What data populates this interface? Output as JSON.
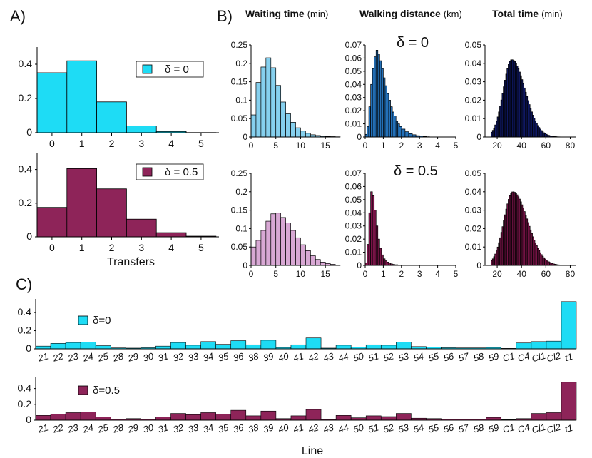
{
  "panels": {
    "a": "A)",
    "b": "B)",
    "c": "C)"
  },
  "colors": {
    "cyan": "#1edcf5",
    "purple": "#8e2459",
    "lightblue": "#86d0ee",
    "blue": "#2370b8",
    "navy": "#101a6a",
    "lilac": "#d8a8d4",
    "darkmagenta": "#7a1448"
  },
  "headings": {
    "waiting": {
      "bold": "Waiting time",
      "unit": "(min)"
    },
    "walking": {
      "bold": "Walking distance",
      "unit": "(km)"
    },
    "total": {
      "bold": "Total time",
      "unit": "(min)"
    }
  },
  "delta_labels": {
    "d0": "δ = 0",
    "d05": "δ = 0.5"
  },
  "chart_data": [
    {
      "id": "transfers_d0",
      "type": "bar",
      "legend": "δ = 0",
      "color": "#1edcf5",
      "categories": [
        "0",
        "1",
        "2",
        "3",
        "4",
        "5"
      ],
      "values": [
        0.35,
        0.42,
        0.18,
        0.04,
        0.007,
        0.001
      ],
      "ylim": [
        0,
        0.5
      ],
      "yticks": [
        0,
        0.2,
        0.4
      ],
      "xlabel": ""
    },
    {
      "id": "transfers_d05",
      "type": "bar",
      "legend": "δ = 0.5",
      "color": "#8e2459",
      "categories": [
        "0",
        "1",
        "2",
        "3",
        "4",
        "5"
      ],
      "values": [
        0.175,
        0.405,
        0.285,
        0.105,
        0.025,
        0.004
      ],
      "ylim": [
        0,
        0.5
      ],
      "yticks": [
        0,
        0.2,
        0.4
      ],
      "xlabel": "Transfers"
    },
    {
      "id": "waiting_d0",
      "type": "bar",
      "color": "#86d0ee",
      "x": [
        0.5,
        1.5,
        2.5,
        3.5,
        4.5,
        5.5,
        6.5,
        7.5,
        8.5,
        9.5,
        10.5,
        11.5,
        12.5,
        13.5,
        14.5,
        15.5,
        16.5,
        17.5
      ],
      "values": [
        0.06,
        0.148,
        0.19,
        0.215,
        0.188,
        0.14,
        0.095,
        0.063,
        0.04,
        0.025,
        0.016,
        0.01,
        0.006,
        0.004,
        0.002,
        0.0015,
        0.001,
        0.0005
      ],
      "xlim": [
        0,
        18
      ],
      "ylim": [
        0,
        0.25
      ],
      "xticks": [
        0,
        5,
        10,
        15
      ],
      "yticks": [
        0,
        0.05,
        0.1,
        0.15,
        0.2,
        0.25
      ]
    },
    {
      "id": "walking_d0",
      "type": "bar",
      "color": "#2370b8",
      "x": [
        0.05,
        0.15,
        0.25,
        0.35,
        0.45,
        0.55,
        0.65,
        0.75,
        0.85,
        0.95,
        1.05,
        1.15,
        1.25,
        1.35,
        1.45,
        1.55,
        1.65,
        1.75,
        1.85,
        1.95,
        2.1,
        2.3,
        2.5,
        2.7,
        2.9,
        3.1,
        3.3,
        3.5
      ],
      "values": [
        0.002,
        0.008,
        0.023,
        0.04,
        0.052,
        0.061,
        0.066,
        0.063,
        0.058,
        0.052,
        0.045,
        0.039,
        0.033,
        0.028,
        0.023,
        0.019,
        0.016,
        0.012,
        0.01,
        0.008,
        0.006,
        0.004,
        0.0025,
        0.0017,
        0.001,
        0.0007,
        0.0004,
        0.0002
      ],
      "xlim": [
        0,
        5
      ],
      "ylim": [
        0,
        0.07
      ],
      "xticks": [
        0,
        1,
        2,
        3,
        4,
        5
      ],
      "yticks": [
        0,
        0.01,
        0.02,
        0.03,
        0.04,
        0.05,
        0.06,
        0.07
      ]
    },
    {
      "id": "total_d0",
      "type": "bar",
      "color": "#101a6a",
      "x_range": [
        15,
        80
      ],
      "peak": 32,
      "peak_value": 0.042,
      "sigma_left": 7,
      "sigma_right": 11,
      "xlim": [
        10,
        85
      ],
      "ylim": [
        0,
        0.05
      ],
      "xticks": [
        20,
        40,
        60,
        80
      ],
      "yticks": [
        0,
        0.01,
        0.02,
        0.03,
        0.04,
        0.05
      ]
    },
    {
      "id": "waiting_d05",
      "type": "bar",
      "color": "#d8a8d4",
      "x": [
        0.5,
        1.5,
        2.5,
        3.5,
        4.5,
        5.5,
        6.5,
        7.5,
        8.5,
        9.5,
        10.5,
        11.5,
        12.5,
        13.5,
        14.5,
        15.5,
        16.5,
        17.5
      ],
      "values": [
        0.05,
        0.068,
        0.095,
        0.12,
        0.14,
        0.142,
        0.13,
        0.115,
        0.095,
        0.075,
        0.056,
        0.04,
        0.026,
        0.016,
        0.009,
        0.005,
        0.003,
        0.001
      ],
      "xlim": [
        0,
        18
      ],
      "ylim": [
        0,
        0.25
      ],
      "xticks": [
        0,
        5,
        10,
        15
      ],
      "yticks": [
        0,
        0.05,
        0.1,
        0.15,
        0.2,
        0.25
      ]
    },
    {
      "id": "walking_d05",
      "type": "bar",
      "color": "#7a1448",
      "x": [
        0.05,
        0.15,
        0.25,
        0.35,
        0.45,
        0.55,
        0.65,
        0.75,
        0.85,
        0.95,
        1.05,
        1.15,
        1.25,
        1.35,
        1.45,
        1.55,
        1.7,
        1.9,
        2.1,
        2.3
      ],
      "values": [
        0.002,
        0.016,
        0.04,
        0.056,
        0.053,
        0.042,
        0.03,
        0.02,
        0.013,
        0.008,
        0.005,
        0.0035,
        0.0025,
        0.0018,
        0.0012,
        0.0008,
        0.0005,
        0.0003,
        0.0002,
        0.0001
      ],
      "xlim": [
        0,
        5
      ],
      "ylim": [
        0,
        0.07
      ],
      "xticks": [
        0,
        1,
        2,
        3,
        4,
        5
      ],
      "yticks": [
        0,
        0.01,
        0.02,
        0.03,
        0.04,
        0.05,
        0.06,
        0.07
      ]
    },
    {
      "id": "total_d05",
      "type": "bar",
      "color": "#7a1448",
      "x_range": [
        15,
        80
      ],
      "peak": 33,
      "peak_value": 0.04,
      "sigma_left": 7.5,
      "sigma_right": 12,
      "xlim": [
        10,
        85
      ],
      "ylim": [
        0,
        0.05
      ],
      "xticks": [
        20,
        40,
        60,
        80
      ],
      "yticks": [
        0,
        0.01,
        0.02,
        0.03,
        0.04,
        0.05
      ]
    },
    {
      "id": "lines_d0",
      "type": "bar",
      "legend": "δ=0",
      "color": "#1edcf5",
      "categories": [
        "21",
        "22",
        "23",
        "24",
        "25",
        "28",
        "29",
        "30",
        "31",
        "32",
        "33",
        "34",
        "35",
        "36",
        "38",
        "39",
        "40",
        "41",
        "42",
        "43",
        "44",
        "50",
        "51",
        "52",
        "53",
        "54",
        "55",
        "56",
        "57",
        "58",
        "59",
        "C1",
        "C4",
        "Cl1",
        "Cl2",
        "t1"
      ],
      "values": [
        0.03,
        0.06,
        0.07,
        0.075,
        0.035,
        0.01,
        0.008,
        0.012,
        0.03,
        0.07,
        0.04,
        0.08,
        0.05,
        0.09,
        0.045,
        0.095,
        0.015,
        0.045,
        0.12,
        0.008,
        0.04,
        0.02,
        0.045,
        0.04,
        0.075,
        0.025,
        0.02,
        0.012,
        0.01,
        0.01,
        0.015,
        0.005,
        0.065,
        0.08,
        0.085,
        0.52
      ],
      "ylim": [
        0,
        0.55
      ],
      "yticks": [
        0,
        0.2,
        0.4
      ]
    },
    {
      "id": "lines_d05",
      "type": "bar",
      "legend": "δ=0.5",
      "color": "#8e2459",
      "categories": [
        "21",
        "22",
        "23",
        "24",
        "25",
        "28",
        "29",
        "30",
        "31",
        "32",
        "33",
        "34",
        "35",
        "36",
        "38",
        "39",
        "40",
        "41",
        "42",
        "43",
        "44",
        "50",
        "51",
        "52",
        "53",
        "54",
        "55",
        "56",
        "57",
        "58",
        "59",
        "C1",
        "C4",
        "Cl1",
        "Cl2",
        "t1"
      ],
      "values": [
        0.06,
        0.075,
        0.095,
        0.105,
        0.04,
        0.012,
        0.02,
        0.015,
        0.04,
        0.085,
        0.07,
        0.095,
        0.075,
        0.125,
        0.055,
        0.115,
        0.02,
        0.055,
        0.135,
        0.01,
        0.06,
        0.03,
        0.055,
        0.045,
        0.085,
        0.025,
        0.02,
        0.012,
        0.012,
        0.012,
        0.035,
        0.006,
        0.02,
        0.085,
        0.095,
        0.48
      ],
      "ylim": [
        0,
        0.55
      ],
      "yticks": [
        0,
        0.2,
        0.4
      ],
      "xlabel": "Line"
    }
  ]
}
